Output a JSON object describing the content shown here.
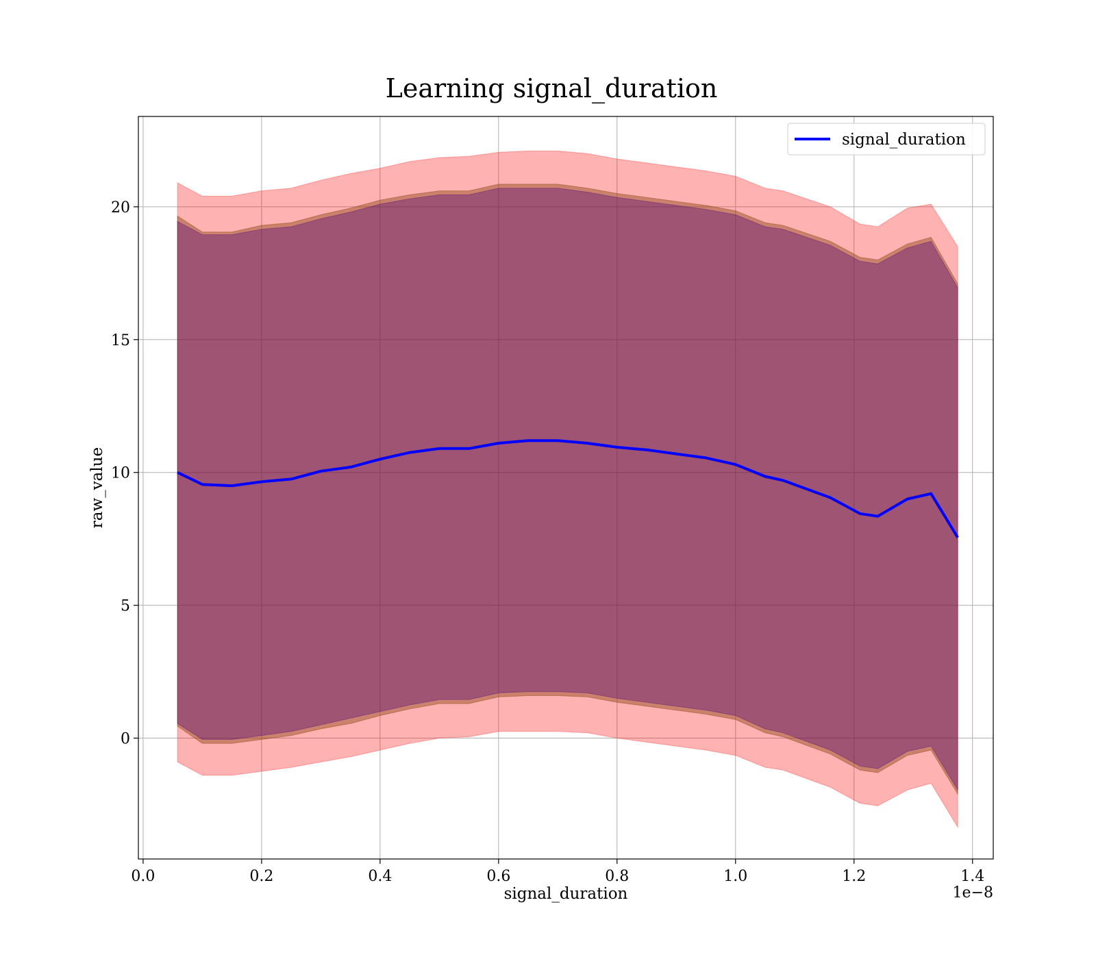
{
  "chart_data": {
    "type": "line",
    "title": "Learning signal_duration",
    "xlabel": "signal_duration",
    "ylabel": "raw_value",
    "x_offset_label": "1e−8",
    "xlim": [
      -8e-11,
      1.435e-08
    ],
    "ylim": [
      -4.55,
      23.4
    ],
    "x_ticks": [
      0.0,
      2e-09,
      4e-09,
      6e-09,
      8e-09,
      1e-08,
      1.2e-08,
      1.4e-08
    ],
    "x_tick_labels": [
      "0.0",
      "0.2",
      "0.4",
      "0.6",
      "0.8",
      "1.0",
      "1.2",
      "1.4"
    ],
    "y_ticks": [
      0,
      5,
      10,
      15,
      20
    ],
    "y_tick_labels": [
      "0",
      "5",
      "10",
      "15",
      "20"
    ],
    "grid": true,
    "legend_position": "top-right",
    "colors": {
      "line": "#0000ff",
      "outer_band": "#ff0000",
      "middle_band": "#8b4513",
      "inner_band": "#4b0082",
      "grid": "#b0b0b0"
    },
    "x": [
      5.8e-10,
      1e-09,
      1.5e-09,
      2e-09,
      2.5e-09,
      3e-09,
      3.5e-09,
      4e-09,
      4.5e-09,
      5e-09,
      5.5e-09,
      6e-09,
      6.5e-09,
      7e-09,
      7.5e-09,
      8e-09,
      8.5e-09,
      9e-09,
      9.5e-09,
      1e-08,
      1.05e-08,
      1.08e-08,
      1.16e-08,
      1.21e-08,
      1.24e-08,
      1.29e-08,
      1.33e-08,
      1.375e-08
    ],
    "series": [
      {
        "name": "signal_duration",
        "values": [
          10.0,
          9.55,
          9.5,
          9.65,
          9.75,
          10.05,
          10.2,
          10.5,
          10.75,
          10.9,
          10.9,
          11.1,
          11.2,
          11.2,
          11.1,
          10.95,
          10.85,
          10.7,
          10.55,
          10.3,
          9.85,
          9.7,
          9.05,
          8.45,
          8.35,
          9.0,
          9.2,
          7.55
        ]
      }
    ],
    "bands": [
      {
        "role": "outer",
        "lower": [
          -0.9,
          -1.4,
          -1.4,
          -1.25,
          -1.1,
          -0.9,
          -0.7,
          -0.45,
          -0.2,
          0.0,
          0.05,
          0.25,
          0.25,
          0.25,
          0.2,
          0.0,
          -0.15,
          -0.3,
          -0.45,
          -0.65,
          -1.1,
          -1.2,
          -1.85,
          -2.45,
          -2.55,
          -1.95,
          -1.7,
          -3.35
        ],
        "upper": [
          20.9,
          20.4,
          20.4,
          20.6,
          20.7,
          21.0,
          21.25,
          21.45,
          21.7,
          21.85,
          21.9,
          22.05,
          22.1,
          22.1,
          22.0,
          21.8,
          21.65,
          21.5,
          21.35,
          21.15,
          20.7,
          20.6,
          20.0,
          19.35,
          19.25,
          19.95,
          20.1,
          18.5
        ]
      },
      {
        "role": "middle",
        "lower": [
          0.45,
          -0.2,
          -0.2,
          -0.05,
          0.1,
          0.35,
          0.55,
          0.85,
          1.1,
          1.3,
          1.3,
          1.55,
          1.6,
          1.6,
          1.55,
          1.35,
          1.2,
          1.05,
          0.9,
          0.7,
          0.2,
          0.05,
          -0.6,
          -1.2,
          -1.3,
          -0.65,
          -0.45,
          -2.1
        ],
        "upper": [
          19.65,
          19.05,
          19.05,
          19.3,
          19.4,
          19.7,
          19.95,
          20.25,
          20.45,
          20.6,
          20.6,
          20.85,
          20.85,
          20.85,
          20.7,
          20.5,
          20.35,
          20.2,
          20.05,
          19.85,
          19.4,
          19.3,
          18.7,
          18.1,
          18.0,
          18.6,
          18.85,
          17.1
        ]
      },
      {
        "role": "inner",
        "lower": [
          0.55,
          -0.05,
          -0.05,
          0.1,
          0.25,
          0.5,
          0.75,
          1.0,
          1.25,
          1.45,
          1.45,
          1.7,
          1.75,
          1.75,
          1.7,
          1.5,
          1.35,
          1.2,
          1.05,
          0.85,
          0.35,
          0.2,
          -0.45,
          -1.05,
          -1.15,
          -0.5,
          -0.3,
          -1.95
        ],
        "upper": [
          19.45,
          18.95,
          18.95,
          19.15,
          19.25,
          19.55,
          19.8,
          20.1,
          20.3,
          20.45,
          20.45,
          20.7,
          20.7,
          20.7,
          20.55,
          20.35,
          20.2,
          20.05,
          19.9,
          19.7,
          19.25,
          19.15,
          18.55,
          17.95,
          17.85,
          18.45,
          18.7,
          16.95
        ]
      }
    ]
  }
}
